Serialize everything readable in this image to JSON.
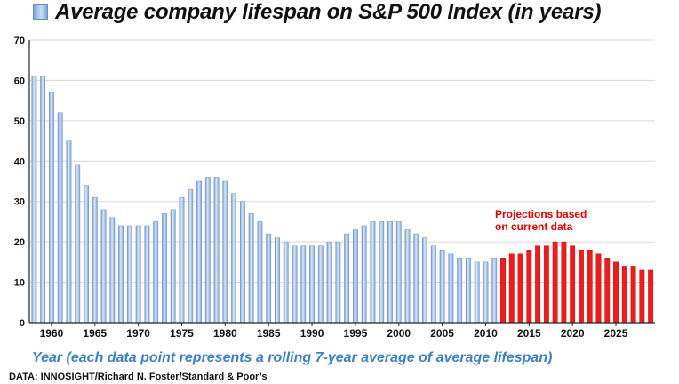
{
  "chart_data": {
    "type": "bar",
    "title": "Average company lifespan on S&P 500 Index (in years)",
    "xlabel": "Year (each data point represents a rolling 7-year average of average lifespan)",
    "ylabel": "",
    "ylim": [
      0,
      70
    ],
    "yticks": [
      0,
      10,
      20,
      30,
      40,
      50,
      60,
      70
    ],
    "xtick_labels": [
      1960,
      1965,
      1970,
      1975,
      1980,
      1985,
      1990,
      1995,
      2000,
      2005,
      2010,
      2015,
      2020,
      2025
    ],
    "grid": true,
    "legend": "top-left",
    "annotation": {
      "line1": "Projections based",
      "line2": "on current data"
    },
    "source": "DATA: INNOSIGHT/Richard N. Foster/Standard & Poor’s",
    "colors": {
      "historical": "#9ab8e0",
      "projection": "#ee1c1c",
      "annotation": "#e00000",
      "caption": "#3d7fc5"
    },
    "series": [
      {
        "name": "historical",
        "x": [
          1958,
          1959,
          1960,
          1961,
          1962,
          1963,
          1964,
          1965,
          1966,
          1967,
          1968,
          1969,
          1970,
          1971,
          1972,
          1973,
          1974,
          1975,
          1976,
          1977,
          1978,
          1979,
          1980,
          1981,
          1982,
          1983,
          1984,
          1985,
          1986,
          1987,
          1988,
          1989,
          1990,
          1991,
          1992,
          1993,
          1994,
          1995,
          1996,
          1997,
          1998,
          1999,
          2000,
          2001,
          2002,
          2003,
          2004,
          2005,
          2006,
          2007,
          2008,
          2009,
          2010,
          2011
        ],
        "values": [
          61,
          61,
          57,
          52,
          45,
          39,
          34,
          31,
          28,
          26,
          24,
          24,
          24,
          24,
          25,
          27,
          28,
          31,
          33,
          35,
          36,
          36,
          35,
          32,
          30,
          27,
          25,
          22,
          21,
          20,
          19,
          19,
          19,
          19,
          20,
          20,
          22,
          23,
          24,
          25,
          25,
          25,
          25,
          23,
          22,
          21,
          19,
          18,
          17,
          16,
          16,
          15,
          15,
          16
        ]
      },
      {
        "name": "projection",
        "x": [
          2012,
          2013,
          2014,
          2015,
          2016,
          2017,
          2018,
          2019,
          2020,
          2021,
          2022,
          2023,
          2024,
          2025,
          2026,
          2027,
          2028,
          2029
        ],
        "values": [
          16,
          17,
          17,
          18,
          19,
          19,
          20,
          20,
          19,
          18,
          18,
          17,
          16,
          15,
          14,
          14,
          13,
          13
        ]
      }
    ]
  }
}
